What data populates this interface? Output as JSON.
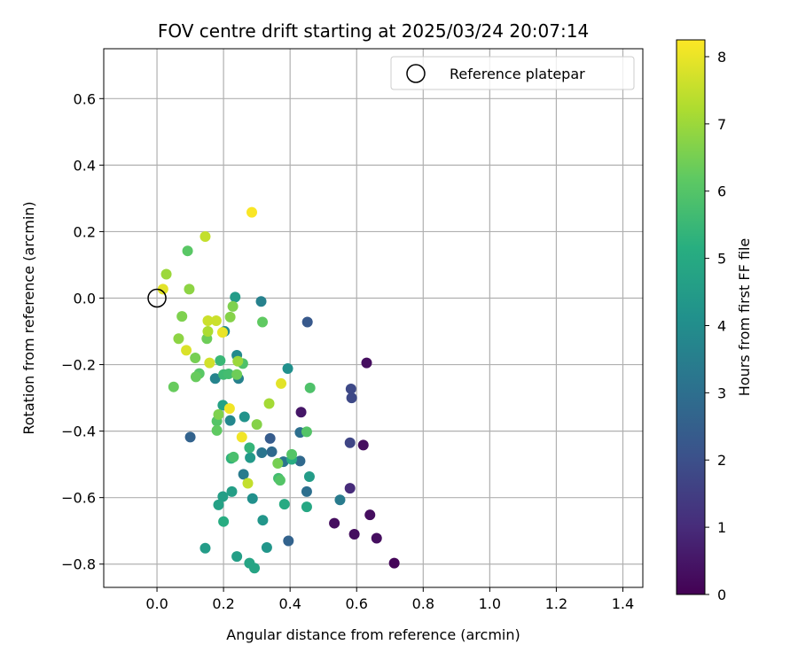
{
  "chart_data": {
    "type": "scatter",
    "title": "FOV centre drift starting at 2025/03/24 20:07:14",
    "xlabel": "Angular distance from reference (arcmin)",
    "ylabel": "Rotation from reference (arcmin)",
    "xlim": [
      -0.16,
      1.46
    ],
    "ylim": [
      -0.87,
      0.75
    ],
    "xticks": [
      "0.0",
      "0.2",
      "0.4",
      "0.6",
      "0.8",
      "1.0",
      "1.2",
      "1.4"
    ],
    "yticks": [
      "−0.8",
      "−0.6",
      "−0.4",
      "−0.2",
      "0.0",
      "0.2",
      "0.4",
      "0.6"
    ],
    "grid": true,
    "legend": {
      "placement": "top-right",
      "entries": [
        "Reference platepar"
      ]
    },
    "reference_point": {
      "x": 0.0,
      "y": 0.0
    },
    "colorbar": {
      "label": "Hours from first FF file",
      "range": [
        0,
        8.25
      ],
      "ticks": [
        "0",
        "1",
        "2",
        "3",
        "4",
        "5",
        "6",
        "7",
        "8"
      ],
      "colormap": "viridis"
    },
    "points": [
      {
        "x": 0.713,
        "y": -0.797,
        "h": 0.1
      },
      {
        "x": 0.66,
        "y": -0.722,
        "h": 0.3
      },
      {
        "x": 0.64,
        "y": -0.652,
        "h": 0.3
      },
      {
        "x": 0.593,
        "y": -0.71,
        "h": 0.3
      },
      {
        "x": 0.533,
        "y": -0.677,
        "h": 0.3
      },
      {
        "x": 0.62,
        "y": -0.442,
        "h": 0.3
      },
      {
        "x": 0.63,
        "y": -0.195,
        "h": 0.3
      },
      {
        "x": 0.433,
        "y": -0.343,
        "h": 0.5
      },
      {
        "x": 0.58,
        "y": -0.572,
        "h": 1.0
      },
      {
        "x": 0.58,
        "y": -0.435,
        "h": 1.7
      },
      {
        "x": 0.585,
        "y": -0.3,
        "h": 1.8
      },
      {
        "x": 0.583,
        "y": -0.273,
        "h": 1.8
      },
      {
        "x": 0.452,
        "y": -0.072,
        "h": 2.3
      },
      {
        "x": 0.34,
        "y": -0.422,
        "h": 2.4
      },
      {
        "x": 0.1,
        "y": -0.418,
        "h": 2.6
      },
      {
        "x": 0.395,
        "y": -0.73,
        "h": 2.6
      },
      {
        "x": 0.345,
        "y": -0.462,
        "h": 2.8
      },
      {
        "x": 0.43,
        "y": -0.49,
        "h": 2.8
      },
      {
        "x": 0.43,
        "y": -0.404,
        "h": 3.0
      },
      {
        "x": 0.45,
        "y": -0.582,
        "h": 3.0
      },
      {
        "x": 0.315,
        "y": -0.465,
        "h": 3.2
      },
      {
        "x": 0.38,
        "y": -0.492,
        "h": 3.2
      },
      {
        "x": 0.55,
        "y": -0.607,
        "h": 3.4
      },
      {
        "x": 0.26,
        "y": -0.53,
        "h": 3.4
      },
      {
        "x": 0.313,
        "y": -0.01,
        "h": 3.6
      },
      {
        "x": 0.245,
        "y": -0.242,
        "h": 3.6
      },
      {
        "x": 0.175,
        "y": -0.242,
        "h": 3.7
      },
      {
        "x": 0.22,
        "y": -0.368,
        "h": 3.8
      },
      {
        "x": 0.24,
        "y": -0.172,
        "h": 3.9
      },
      {
        "x": 0.203,
        "y": -0.1,
        "h": 3.9
      },
      {
        "x": 0.393,
        "y": -0.212,
        "h": 4.1
      },
      {
        "x": 0.287,
        "y": -0.603,
        "h": 4.1
      },
      {
        "x": 0.263,
        "y": -0.357,
        "h": 4.2
      },
      {
        "x": 0.33,
        "y": -0.75,
        "h": 4.3
      },
      {
        "x": 0.318,
        "y": -0.668,
        "h": 4.3
      },
      {
        "x": 0.28,
        "y": -0.48,
        "h": 4.4
      },
      {
        "x": 0.235,
        "y": 0.003,
        "h": 4.5
      },
      {
        "x": 0.458,
        "y": -0.537,
        "h": 4.5
      },
      {
        "x": 0.145,
        "y": -0.752,
        "h": 4.5
      },
      {
        "x": 0.24,
        "y": -0.777,
        "h": 4.6
      },
      {
        "x": 0.225,
        "y": -0.582,
        "h": 4.6
      },
      {
        "x": 0.198,
        "y": -0.597,
        "h": 4.6
      },
      {
        "x": 0.185,
        "y": -0.622,
        "h": 4.7
      },
      {
        "x": 0.198,
        "y": -0.322,
        "h": 4.7
      },
      {
        "x": 0.278,
        "y": -0.797,
        "h": 4.8
      },
      {
        "x": 0.293,
        "y": -0.812,
        "h": 4.8
      },
      {
        "x": 0.45,
        "y": -0.628,
        "h": 4.9
      },
      {
        "x": 0.383,
        "y": -0.62,
        "h": 5.0
      },
      {
        "x": 0.2,
        "y": -0.672,
        "h": 5.1
      },
      {
        "x": 0.405,
        "y": -0.485,
        "h": 5.1
      },
      {
        "x": 0.223,
        "y": -0.482,
        "h": 5.3
      },
      {
        "x": 0.278,
        "y": -0.45,
        "h": 5.4
      },
      {
        "x": 0.19,
        "y": -0.188,
        "h": 5.5
      },
      {
        "x": 0.2,
        "y": -0.23,
        "h": 5.6
      },
      {
        "x": 0.215,
        "y": -0.228,
        "h": 5.7
      },
      {
        "x": 0.365,
        "y": -0.542,
        "h": 5.7
      },
      {
        "x": 0.23,
        "y": -0.478,
        "h": 5.8
      },
      {
        "x": 0.46,
        "y": -0.27,
        "h": 5.9
      },
      {
        "x": 0.258,
        "y": -0.197,
        "h": 5.9
      },
      {
        "x": 0.405,
        "y": -0.47,
        "h": 6.0
      },
      {
        "x": 0.18,
        "y": -0.37,
        "h": 6.0
      },
      {
        "x": 0.37,
        "y": -0.548,
        "h": 6.0
      },
      {
        "x": 0.45,
        "y": -0.402,
        "h": 6.0
      },
      {
        "x": 0.092,
        "y": 0.142,
        "h": 6.1
      },
      {
        "x": 0.127,
        "y": -0.227,
        "h": 6.1
      },
      {
        "x": 0.317,
        "y": -0.072,
        "h": 6.2
      },
      {
        "x": 0.18,
        "y": -0.398,
        "h": 6.2
      },
      {
        "x": 0.117,
        "y": -0.237,
        "h": 6.3
      },
      {
        "x": 0.05,
        "y": -0.267,
        "h": 6.3
      },
      {
        "x": 0.24,
        "y": -0.23,
        "h": 6.4
      },
      {
        "x": 0.15,
        "y": -0.122,
        "h": 6.4
      },
      {
        "x": 0.363,
        "y": -0.497,
        "h": 6.5
      },
      {
        "x": 0.115,
        "y": -0.18,
        "h": 6.5
      },
      {
        "x": 0.075,
        "y": -0.055,
        "h": 6.6
      },
      {
        "x": 0.185,
        "y": -0.35,
        "h": 6.6
      },
      {
        "x": 0.228,
        "y": -0.025,
        "h": 6.6
      },
      {
        "x": 0.3,
        "y": -0.38,
        "h": 6.7
      },
      {
        "x": 0.22,
        "y": -0.057,
        "h": 6.7
      },
      {
        "x": 0.065,
        "y": -0.122,
        "h": 6.8
      },
      {
        "x": 0.097,
        "y": 0.027,
        "h": 6.8
      },
      {
        "x": 0.243,
        "y": -0.19,
        "h": 7.0
      },
      {
        "x": 0.028,
        "y": 0.072,
        "h": 7.0
      },
      {
        "x": 0.337,
        "y": -0.317,
        "h": 7.1
      },
      {
        "x": 0.153,
        "y": -0.1,
        "h": 7.2
      },
      {
        "x": 0.145,
        "y": 0.185,
        "h": 7.5
      },
      {
        "x": 0.273,
        "y": -0.557,
        "h": 7.5
      },
      {
        "x": 0.153,
        "y": -0.068,
        "h": 7.6
      },
      {
        "x": 0.178,
        "y": -0.068,
        "h": 7.6
      },
      {
        "x": 0.158,
        "y": -0.195,
        "h": 7.7
      },
      {
        "x": 0.088,
        "y": -0.157,
        "h": 7.8
      },
      {
        "x": 0.018,
        "y": 0.027,
        "h": 7.9
      },
      {
        "x": 0.373,
        "y": -0.257,
        "h": 7.9
      },
      {
        "x": 0.197,
        "y": -0.103,
        "h": 8.0
      },
      {
        "x": 0.255,
        "y": -0.418,
        "h": 8.1
      },
      {
        "x": 0.218,
        "y": -0.332,
        "h": 8.1
      },
      {
        "x": 0.285,
        "y": 0.258,
        "h": 8.2
      }
    ]
  }
}
